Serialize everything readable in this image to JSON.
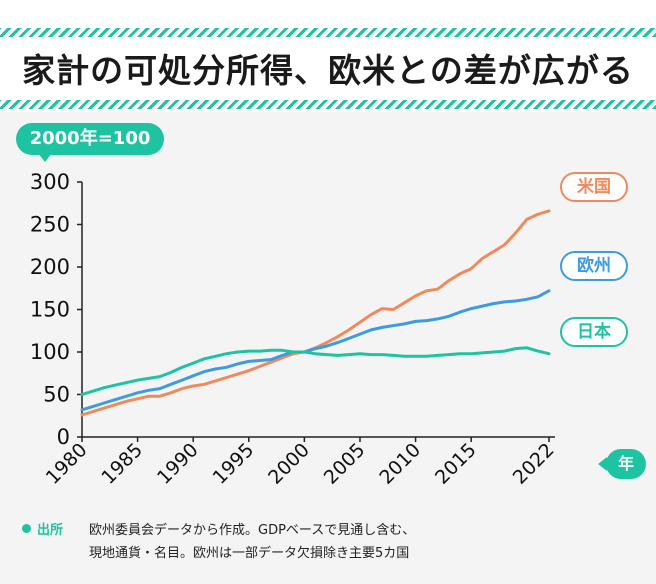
{
  "title": "家計の可処分所得、欧米との差が広がる",
  "base_note": "2000年=100",
  "x_unit_label": "年",
  "source": {
    "label": "出所",
    "line1": "欧州委員会データから作成。GDPベースで見通し含む、",
    "line2": "現地通貨・名目。欧州は一部データ欠損除き主要5カ国"
  },
  "colors": {
    "accent": "#1ec3a2",
    "us": "#f08a5d",
    "europe": "#3d9be0",
    "japan": "#1ec3a2"
  },
  "chart_data": {
    "type": "line",
    "title": "家計の可処分所得、欧米との差が広がる",
    "xlabel": "年",
    "ylabel": "",
    "xlim": [
      1980,
      2022
    ],
    "ylim": [
      0,
      300
    ],
    "x_ticks": [
      "1980",
      "1985",
      "1990",
      "1995",
      "2000",
      "2005",
      "2010",
      "2015",
      "2022"
    ],
    "y_ticks": [
      "0",
      "50",
      "100",
      "150",
      "200",
      "250",
      "300"
    ],
    "grid": false,
    "legend": "right, at line ends",
    "x": [
      1980,
      1981,
      1982,
      1983,
      1984,
      1985,
      1986,
      1987,
      1988,
      1989,
      1990,
      1991,
      1992,
      1993,
      1994,
      1995,
      1996,
      1997,
      1998,
      1999,
      2000,
      2001,
      2002,
      2003,
      2004,
      2005,
      2006,
      2007,
      2008,
      2009,
      2010,
      2011,
      2012,
      2013,
      2014,
      2015,
      2016,
      2017,
      2018,
      2019,
      2020,
      2021,
      2022
    ],
    "series": [
      {
        "name": "米国",
        "color": "#f08a5d",
        "values": [
          26,
          30,
          34,
          38,
          42,
          45,
          48,
          48,
          52,
          57,
          60,
          62,
          66,
          70,
          74,
          78,
          83,
          88,
          93,
          98,
          100,
          105,
          111,
          118,
          126,
          135,
          144,
          151,
          150,
          158,
          166,
          172,
          174,
          184,
          192,
          198,
          210,
          218,
          226,
          240,
          256,
          262,
          266
        ]
      },
      {
        "name": "欧州",
        "color": "#3d9be0",
        "values": [
          32,
          36,
          40,
          44,
          48,
          52,
          55,
          57,
          62,
          67,
          72,
          77,
          80,
          82,
          86,
          89,
          90,
          91,
          96,
          100,
          100,
          104,
          107,
          111,
          116,
          121,
          126,
          129,
          131,
          133,
          136,
          137,
          139,
          142,
          147,
          151,
          154,
          157,
          159,
          160,
          162,
          165,
          172
        ]
      },
      {
        "name": "日本",
        "color": "#1ec3a2",
        "values": [
          50,
          54,
          58,
          61,
          64,
          67,
          69,
          71,
          76,
          82,
          87,
          92,
          95,
          98,
          100,
          101,
          101,
          102,
          102,
          100,
          100,
          98,
          97,
          96,
          97,
          98,
          97,
          97,
          96,
          95,
          95,
          95,
          96,
          97,
          98,
          98,
          99,
          100,
          101,
          104,
          105,
          101,
          98
        ]
      }
    ]
  }
}
